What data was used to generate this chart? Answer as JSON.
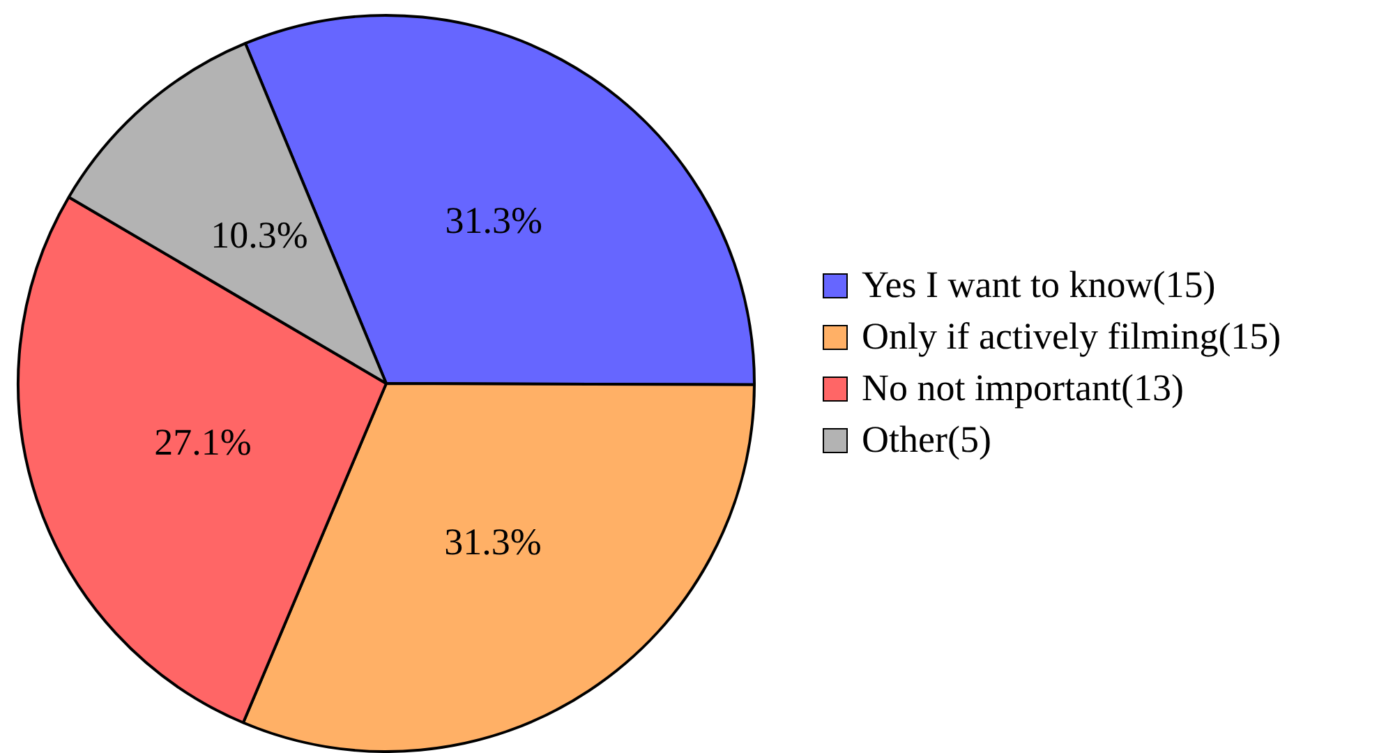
{
  "chart_data": {
    "type": "pie",
    "categories": [
      "Yes I want to know(15)",
      "Only if actively filming(15)",
      "No not important(13)",
      "Other(5)"
    ],
    "values": [
      31.3,
      31.3,
      27.1,
      10.3
    ],
    "colors": [
      "#6666ff",
      "#ffb066",
      "#ff6666",
      "#b3b3b3"
    ],
    "value_labels": [
      "31.3%",
      "31.3%",
      "27.1%",
      "10.3%"
    ],
    "legend": "right"
  }
}
